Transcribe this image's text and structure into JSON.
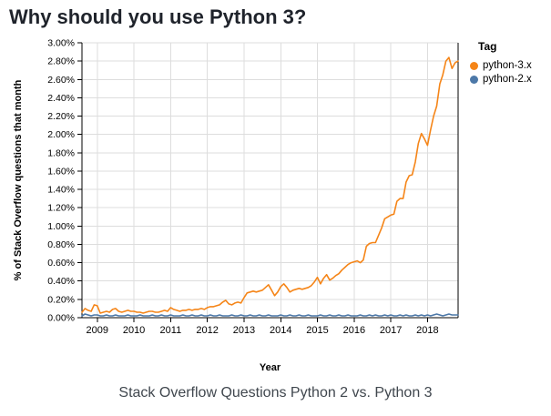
{
  "page": {
    "title": "Why should you use Python 3?",
    "caption": "Stack Overflow Questions Python 2 vs. Python 3"
  },
  "legend": {
    "title": "Tag",
    "items": [
      {
        "label": "python-3.x",
        "color": "#f58518"
      },
      {
        "label": "python-2.x",
        "color": "#4c78a8"
      }
    ]
  },
  "chart_data": {
    "type": "line",
    "title": "Why should you use Python 3?",
    "xlabel": "Year",
    "ylabel": "% of Stack Overflow questions that month",
    "x_start": "2008-08",
    "x_interval": "month",
    "x_tick_years": [
      2009,
      2010,
      2011,
      2012,
      2013,
      2014,
      2015,
      2016,
      2017,
      2018
    ],
    "ylim": [
      0,
      3
    ],
    "y_tick_labels": [
      "0.00%",
      "0.20%",
      "0.40%",
      "0.60%",
      "0.80%",
      "1.00%",
      "1.20%",
      "1.40%",
      "1.60%",
      "1.80%",
      "2.00%",
      "2.20%",
      "2.40%",
      "2.60%",
      "2.80%",
      "3.00%"
    ],
    "y_tick_step": 0.2,
    "grid": true,
    "legend_position": "right-outside-top",
    "colors": {
      "grid": "#dddddd",
      "axis": "#000000",
      "frame_top": "#dddddd"
    },
    "series": [
      {
        "name": "python-3.x",
        "color": "#f58518",
        "unit": "% of questions that month",
        "values": [
          0.06,
          0.1,
          0.08,
          0.07,
          0.14,
          0.13,
          0.05,
          0.06,
          0.07,
          0.06,
          0.09,
          0.1,
          0.07,
          0.06,
          0.07,
          0.08,
          0.07,
          0.07,
          0.06,
          0.06,
          0.05,
          0.06,
          0.07,
          0.07,
          0.06,
          0.06,
          0.07,
          0.08,
          0.07,
          0.11,
          0.09,
          0.08,
          0.07,
          0.08,
          0.08,
          0.09,
          0.08,
          0.09,
          0.09,
          0.1,
          0.09,
          0.11,
          0.12,
          0.12,
          0.13,
          0.14,
          0.17,
          0.19,
          0.15,
          0.14,
          0.16,
          0.17,
          0.16,
          0.22,
          0.27,
          0.28,
          0.29,
          0.28,
          0.29,
          0.3,
          0.33,
          0.36,
          0.3,
          0.24,
          0.28,
          0.34,
          0.37,
          0.33,
          0.28,
          0.3,
          0.31,
          0.32,
          0.31,
          0.32,
          0.33,
          0.35,
          0.39,
          0.44,
          0.37,
          0.43,
          0.47,
          0.41,
          0.43,
          0.46,
          0.48,
          0.52,
          0.55,
          0.58,
          0.6,
          0.61,
          0.62,
          0.6,
          0.63,
          0.78,
          0.81,
          0.82,
          0.82,
          0.9,
          0.98,
          1.08,
          1.1,
          1.12,
          1.13,
          1.27,
          1.3,
          1.3,
          1.48,
          1.55,
          1.56,
          1.7,
          1.9,
          2.01,
          1.95,
          1.88,
          2.05,
          2.2,
          2.31,
          2.55,
          2.65,
          2.8,
          2.84,
          2.72,
          2.78,
          2.8
        ]
      },
      {
        "name": "python-2.x",
        "color": "#4c78a8",
        "unit": "% of questions that month",
        "values": [
          0.02,
          0.04,
          0.03,
          0.02,
          0.03,
          0.03,
          0.02,
          0.02,
          0.03,
          0.02,
          0.02,
          0.03,
          0.02,
          0.02,
          0.02,
          0.03,
          0.02,
          0.02,
          0.02,
          0.03,
          0.02,
          0.02,
          0.02,
          0.03,
          0.02,
          0.02,
          0.03,
          0.02,
          0.02,
          0.03,
          0.02,
          0.02,
          0.02,
          0.03,
          0.02,
          0.02,
          0.03,
          0.02,
          0.02,
          0.03,
          0.02,
          0.02,
          0.03,
          0.02,
          0.02,
          0.03,
          0.02,
          0.02,
          0.02,
          0.03,
          0.02,
          0.02,
          0.03,
          0.02,
          0.02,
          0.03,
          0.02,
          0.02,
          0.03,
          0.02,
          0.02,
          0.03,
          0.02,
          0.02,
          0.02,
          0.03,
          0.02,
          0.02,
          0.03,
          0.02,
          0.02,
          0.03,
          0.02,
          0.02,
          0.03,
          0.02,
          0.02,
          0.02,
          0.03,
          0.02,
          0.02,
          0.03,
          0.02,
          0.02,
          0.03,
          0.02,
          0.02,
          0.03,
          0.02,
          0.02,
          0.02,
          0.03,
          0.02,
          0.02,
          0.03,
          0.02,
          0.03,
          0.02,
          0.02,
          0.03,
          0.02,
          0.03,
          0.02,
          0.02,
          0.03,
          0.02,
          0.03,
          0.02,
          0.02,
          0.03,
          0.02,
          0.03,
          0.02,
          0.03,
          0.02,
          0.03,
          0.04,
          0.03,
          0.02,
          0.03,
          0.04,
          0.03,
          0.03,
          0.03
        ]
      }
    ]
  }
}
